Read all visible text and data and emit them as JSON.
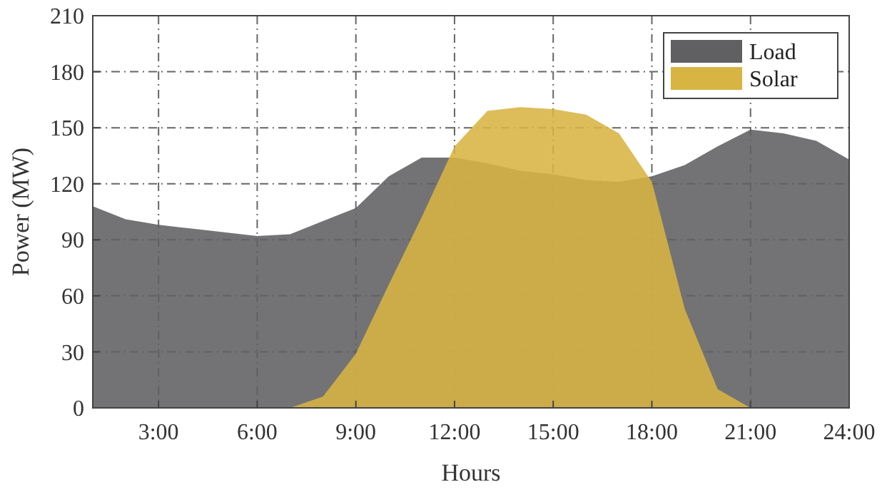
{
  "chart_data": {
    "type": "area",
    "xlabel": "Hours",
    "ylabel": "Power (MW)",
    "xlim": [
      1,
      24
    ],
    "ylim": [
      0,
      210
    ],
    "xticks": [
      {
        "value": 3,
        "label": "3:00"
      },
      {
        "value": 6,
        "label": "6:00"
      },
      {
        "value": 9,
        "label": "9:00"
      },
      {
        "value": 12,
        "label": "12:00"
      },
      {
        "value": 15,
        "label": "15:00"
      },
      {
        "value": 18,
        "label": "18:00"
      },
      {
        "value": 21,
        "label": "21:00"
      },
      {
        "value": 24,
        "label": "24:00"
      }
    ],
    "yticks": [
      0,
      30,
      60,
      90,
      120,
      150,
      180,
      210
    ],
    "grid": true,
    "legend": "top right",
    "series": [
      {
        "name": "Load",
        "color": "#606062",
        "x": [
          1,
          2,
          3,
          4,
          5,
          6,
          7,
          8,
          9,
          10,
          11,
          12,
          13,
          14,
          15,
          16,
          17,
          18,
          19,
          20,
          21,
          22,
          23,
          24
        ],
        "values": [
          108,
          101,
          98,
          96,
          94,
          92,
          93,
          100,
          107,
          124,
          134,
          134,
          131,
          127,
          125,
          122,
          121,
          124,
          130,
          140,
          149,
          147,
          143,
          133
        ]
      },
      {
        "name": "Solar",
        "color": "#d8b443",
        "x": [
          7,
          8,
          9,
          10,
          11,
          12,
          13,
          14,
          15,
          16,
          17,
          18,
          19,
          20,
          21
        ],
        "values": [
          0,
          6,
          29,
          66,
          102,
          140,
          159,
          161,
          160,
          157,
          147,
          121,
          53,
          10,
          0
        ]
      }
    ]
  }
}
